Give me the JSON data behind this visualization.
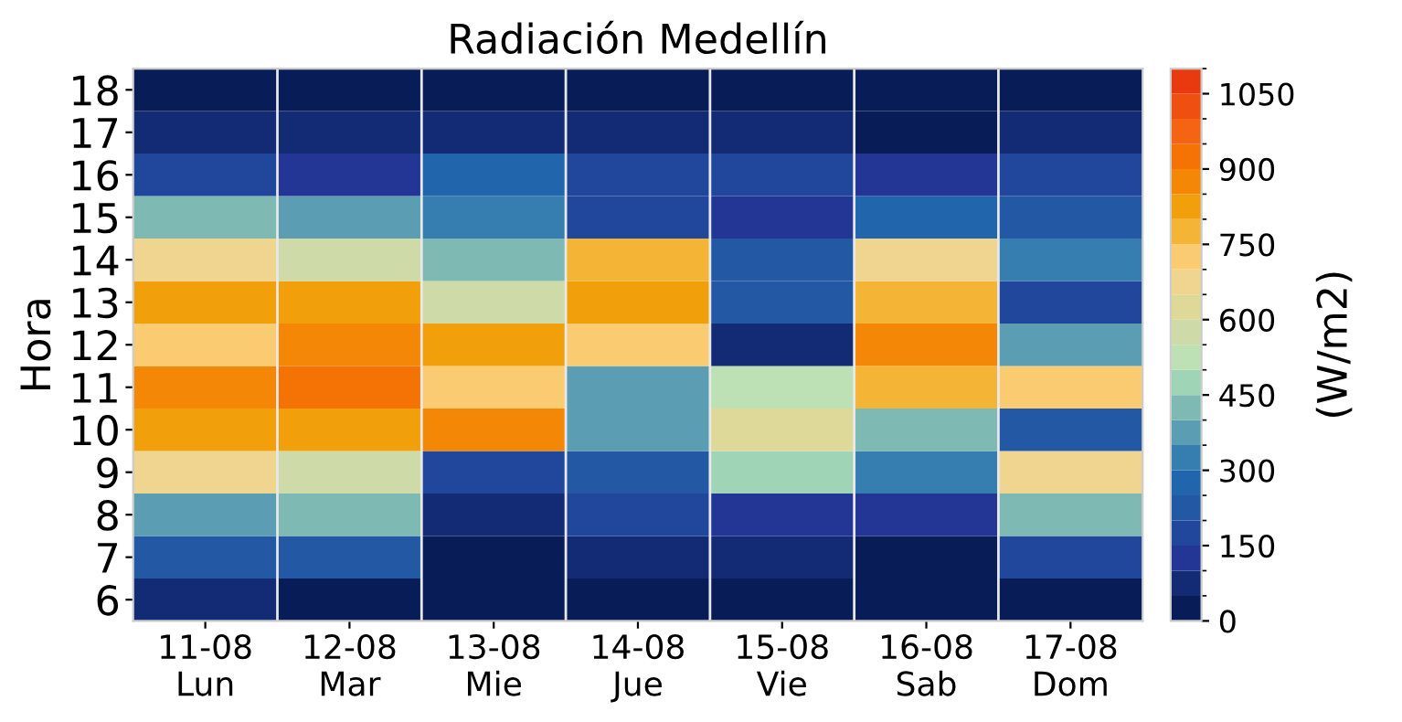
{
  "chart_data": {
    "type": "heatmap",
    "title": "Radiación Medellín",
    "ylabel": "Hora",
    "clabel": "(W/m2)",
    "categories": [
      "11-08\nLun",
      "12-08\nMar",
      "13-08\nMie",
      "14-08\nJue",
      "15-08\nVie",
      "16-08\nSab",
      "17-08\nDom"
    ],
    "y_categories": [
      "18",
      "17",
      "16",
      "15",
      "14",
      "13",
      "12",
      "11",
      "10",
      "9",
      "8",
      "7",
      "6"
    ],
    "cells": [
      [
        25,
        25,
        25,
        25,
        25,
        25,
        25
      ],
      [
        75,
        75,
        75,
        75,
        75,
        25,
        75
      ],
      [
        175,
        125,
        275,
        175,
        175,
        125,
        175
      ],
      [
        425,
        375,
        325,
        175,
        125,
        275,
        225
      ],
      [
        675,
        575,
        425,
        775,
        225,
        675,
        325
      ],
      [
        825,
        825,
        575,
        825,
        225,
        775,
        175
      ],
      [
        725,
        875,
        825,
        725,
        75,
        875,
        375
      ],
      [
        875,
        925,
        725,
        375,
        525,
        775,
        725
      ],
      [
        825,
        825,
        875,
        375,
        625,
        425,
        225
      ],
      [
        675,
        575,
        175,
        225,
        475,
        325,
        675
      ],
      [
        375,
        425,
        75,
        175,
        125,
        125,
        425
      ],
      [
        225,
        225,
        25,
        75,
        75,
        25,
        175
      ],
      [
        75,
        25,
        25,
        25,
        25,
        25,
        25
      ]
    ],
    "colors": [
      "#081d58",
      "#132a75",
      "#233695",
      "#21479d",
      "#2359a4",
      "#2166ac",
      "#377eb0",
      "#5b9db3",
      "#7fb9b3",
      "#a0d4b7",
      "#bde0b4",
      "#cedba8",
      "#dfd999",
      "#efd590",
      "#fbcb71",
      "#f4b536",
      "#f1a00b",
      "#f48806",
      "#f57305",
      "#f46412",
      "#f0500f",
      "#e83a0e"
    ],
    "clim": [
      0,
      1100
    ],
    "cticks": [
      0,
      150,
      300,
      450,
      600,
      750,
      900,
      1050
    ]
  }
}
